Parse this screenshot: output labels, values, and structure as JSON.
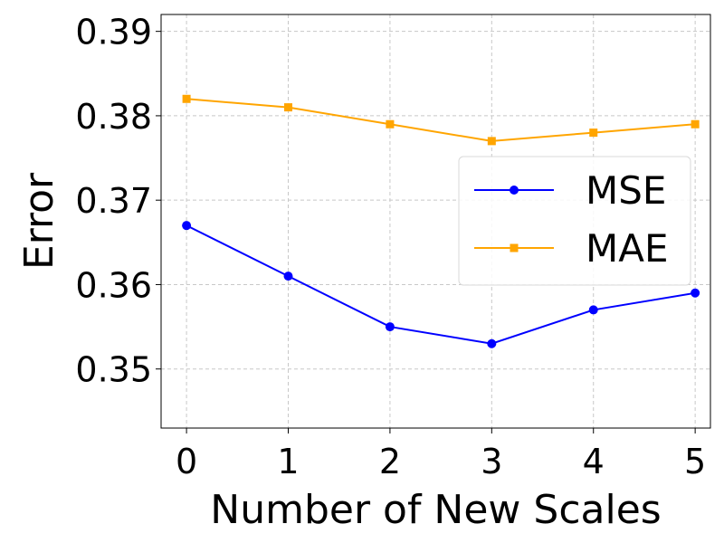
{
  "chart_data": {
    "type": "line",
    "xlabel": "Number of New Scales",
    "ylabel": "Error",
    "x": [
      0,
      1,
      2,
      3,
      4,
      5
    ],
    "x_tick_labels": [
      "0",
      "1",
      "2",
      "3",
      "4",
      "5"
    ],
    "y_ticks": [
      0.35,
      0.36,
      0.37,
      0.38,
      0.39
    ],
    "y_tick_labels": [
      "0.35",
      "0.36",
      "0.37",
      "0.38",
      "0.39"
    ],
    "xlim": [
      -0.25,
      5.15
    ],
    "ylim": [
      0.343,
      0.392
    ],
    "grid": true,
    "legend_position": "center-right",
    "series": [
      {
        "name": "MSE",
        "color": "#0000ff",
        "marker": "circle",
        "values": [
          0.367,
          0.361,
          0.355,
          0.353,
          0.357,
          0.359
        ]
      },
      {
        "name": "MAE",
        "color": "#ffa500",
        "marker": "square",
        "values": [
          0.382,
          0.381,
          0.379,
          0.377,
          0.378,
          0.379
        ]
      }
    ]
  }
}
